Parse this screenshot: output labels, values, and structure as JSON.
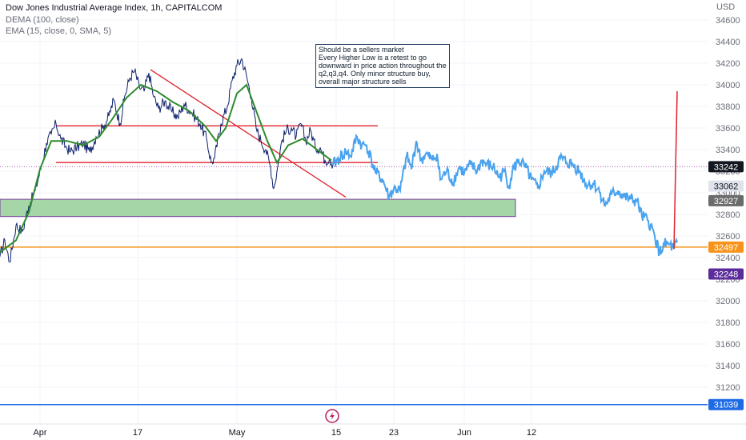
{
  "header": {
    "title": "Dow Jones Industrial Average Index, 1h, CAPITALCOM",
    "indicator1": "DEMA (100, close)",
    "indicator2": "EMA (15, close, 0, SMA, 5)"
  },
  "note": {
    "lines": [
      "Should be a sellers market",
      "Every Higher Low is a retest to go downward in price action throughout the",
      "q2,q3,q4. Only minor structure buy, overall major structure sells"
    ]
  },
  "colors": {
    "price": "#0d1f6b",
    "projection": "#4aa3ee",
    "ema": "#2e8b2e",
    "trendline": "#e0202a",
    "support": "#f7931a",
    "bottom": "#1e6be6",
    "zone_fill": "#a5d6a7",
    "zone_border": "#7b3fa0"
  },
  "icons": {
    "flash": "lightning-icon"
  },
  "chart_data": {
    "type": "line",
    "currency": "USD",
    "y_ticks": [
      34600,
      34400,
      34200,
      34000,
      33800,
      33600,
      33400,
      33200,
      33000,
      32800,
      32600,
      32400,
      32200,
      32000,
      31800,
      31600,
      31400,
      31200
    ],
    "ylim": [
      30930,
      34780
    ],
    "x_ticks": [
      "Apr",
      "17",
      "May",
      "15",
      "23",
      "Jun",
      "12"
    ],
    "price_series": {
      "name": "Dow Jones Industrial Average Index",
      "points": [
        [
          0,
          32410
        ],
        [
          6,
          32560
        ],
        [
          12,
          32360
        ],
        [
          20,
          32700
        ],
        [
          28,
          32640
        ],
        [
          36,
          32880
        ],
        [
          44,
          33020
        ],
        [
          52,
          33260
        ],
        [
          58,
          33460
        ],
        [
          64,
          33540
        ],
        [
          70,
          33640
        ],
        [
          76,
          33500
        ],
        [
          82,
          33430
        ],
        [
          88,
          33380
        ],
        [
          96,
          33420
        ],
        [
          104,
          33460
        ],
        [
          112,
          33380
        ],
        [
          120,
          33520
        ],
        [
          128,
          33600
        ],
        [
          136,
          33710
        ],
        [
          142,
          33860
        ],
        [
          150,
          33640
        ],
        [
          156,
          33900
        ],
        [
          162,
          34060
        ],
        [
          168,
          34130
        ],
        [
          174,
          33980
        ],
        [
          180,
          33940
        ],
        [
          186,
          34110
        ],
        [
          192,
          33890
        ],
        [
          198,
          33780
        ],
        [
          206,
          33850
        ],
        [
          214,
          33760
        ],
        [
          222,
          33700
        ],
        [
          230,
          33820
        ],
        [
          240,
          33740
        ],
        [
          250,
          33640
        ],
        [
          258,
          33500
        ],
        [
          264,
          33280
        ],
        [
          268,
          33320
        ],
        [
          276,
          33640
        ],
        [
          284,
          33800
        ],
        [
          290,
          34040
        ],
        [
          296,
          34180
        ],
        [
          302,
          34240
        ],
        [
          308,
          34080
        ],
        [
          314,
          33890
        ],
        [
          320,
          33600
        ],
        [
          326,
          33480
        ],
        [
          332,
          33400
        ],
        [
          338,
          33240
        ],
        [
          342,
          33040
        ],
        [
          346,
          33200
        ],
        [
          352,
          33480
        ],
        [
          358,
          33580
        ],
        [
          364,
          33600
        ],
        [
          370,
          33520
        ],
        [
          376,
          33640
        ],
        [
          382,
          33480
        ],
        [
          388,
          33580
        ],
        [
          394,
          33420
        ],
        [
          400,
          33420
        ],
        [
          406,
          33300
        ],
        [
          412,
          33320
        ],
        [
          416,
          33260
        ]
      ]
    },
    "ema_series": {
      "name": "EMA (15, close, 0, SMA, 5)",
      "points": [
        [
          0,
          32450
        ],
        [
          20,
          32560
        ],
        [
          36,
          32820
        ],
        [
          50,
          33220
        ],
        [
          64,
          33480
        ],
        [
          84,
          33480
        ],
        [
          104,
          33440
        ],
        [
          124,
          33520
        ],
        [
          140,
          33680
        ],
        [
          158,
          33880
        ],
        [
          176,
          34000
        ],
        [
          196,
          33940
        ],
        [
          216,
          33840
        ],
        [
          236,
          33760
        ],
        [
          256,
          33620
        ],
        [
          270,
          33480
        ],
        [
          282,
          33600
        ],
        [
          296,
          33920
        ],
        [
          308,
          34000
        ],
        [
          320,
          33760
        ],
        [
          334,
          33480
        ],
        [
          346,
          33280
        ],
        [
          360,
          33440
        ],
        [
          378,
          33500
        ],
        [
          396,
          33400
        ],
        [
          414,
          33300
        ]
      ]
    },
    "projection_series": {
      "name": "Projection",
      "points": [
        [
          416,
          33260
        ],
        [
          424,
          33320
        ],
        [
          432,
          33380
        ],
        [
          438,
          33340
        ],
        [
          446,
          33520
        ],
        [
          452,
          33440
        ],
        [
          458,
          33440
        ],
        [
          464,
          33300
        ],
        [
          470,
          33180
        ],
        [
          478,
          33120
        ],
        [
          486,
          32960
        ],
        [
          492,
          33040
        ],
        [
          500,
          33020
        ],
        [
          508,
          33340
        ],
        [
          514,
          33220
        ],
        [
          520,
          33480
        ],
        [
          526,
          33300
        ],
        [
          532,
          33360
        ],
        [
          540,
          33300
        ],
        [
          546,
          33360
        ],
        [
          550,
          33120
        ],
        [
          558,
          33200
        ],
        [
          566,
          33100
        ],
        [
          574,
          33240
        ],
        [
          580,
          33180
        ],
        [
          588,
          33260
        ],
        [
          596,
          33200
        ],
        [
          602,
          33300
        ],
        [
          608,
          33260
        ],
        [
          616,
          33240
        ],
        [
          624,
          33140
        ],
        [
          630,
          33200
        ],
        [
          636,
          33060
        ],
        [
          640,
          33200
        ],
        [
          648,
          33300
        ],
        [
          656,
          33240
        ],
        [
          664,
          33120
        ],
        [
          672,
          33040
        ],
        [
          680,
          33200
        ],
        [
          690,
          33180
        ],
        [
          700,
          33320
        ],
        [
          708,
          33280
        ],
        [
          716,
          33260
        ],
        [
          724,
          33200
        ],
        [
          732,
          33080
        ],
        [
          742,
          33080
        ],
        [
          750,
          33000
        ],
        [
          756,
          32880
        ],
        [
          764,
          32980
        ],
        [
          772,
          33020
        ],
        [
          780,
          32960
        ],
        [
          788,
          32940
        ],
        [
          796,
          32920
        ],
        [
          802,
          32780
        ],
        [
          810,
          32740
        ],
        [
          818,
          32600
        ],
        [
          824,
          32440
        ],
        [
          830,
          32520
        ],
        [
          836,
          32520
        ],
        [
          842,
          32480
        ],
        [
          846,
          32540
        ]
      ]
    },
    "spike": {
      "name": "Spike",
      "points": [
        [
          842,
          32480
        ],
        [
          846,
          33940
        ]
      ]
    },
    "trendline": {
      "from": [
        188,
        34140
      ],
      "to": [
        432,
        32960
      ]
    },
    "resistance_upper": {
      "value": 33620,
      "x_range": [
        70,
        472
      ]
    },
    "resistance_lower": {
      "value": 33280,
      "x_range": [
        70,
        472
      ]
    },
    "zone": {
      "low": 32780,
      "high": 32940,
      "x_range": [
        0,
        644
      ]
    },
    "support_line": {
      "value": 32497
    },
    "bottom_line": {
      "value": 31039
    },
    "current_line": {
      "value": 33242
    },
    "price_labels": [
      {
        "value": "33242",
        "level": 33242,
        "bg": "#131722",
        "fg": "#ffffff"
      },
      {
        "value": "33062",
        "level": 33062,
        "bg": "#e0e3eb",
        "fg": "#131722"
      },
      {
        "value": "32927",
        "level": 32927,
        "bg": "#6b6b6b",
        "fg": "#ffffff"
      },
      {
        "value": "32497",
        "level": 32497,
        "bg": "#f7931a",
        "fg": "#ffffff"
      },
      {
        "value": "32248",
        "level": 32248,
        "bg": "#5b2c9a",
        "fg": "#ffffff"
      },
      {
        "value": "31039",
        "level": 31039,
        "bg": "#1e6be6",
        "fg": "#ffffff"
      }
    ]
  }
}
